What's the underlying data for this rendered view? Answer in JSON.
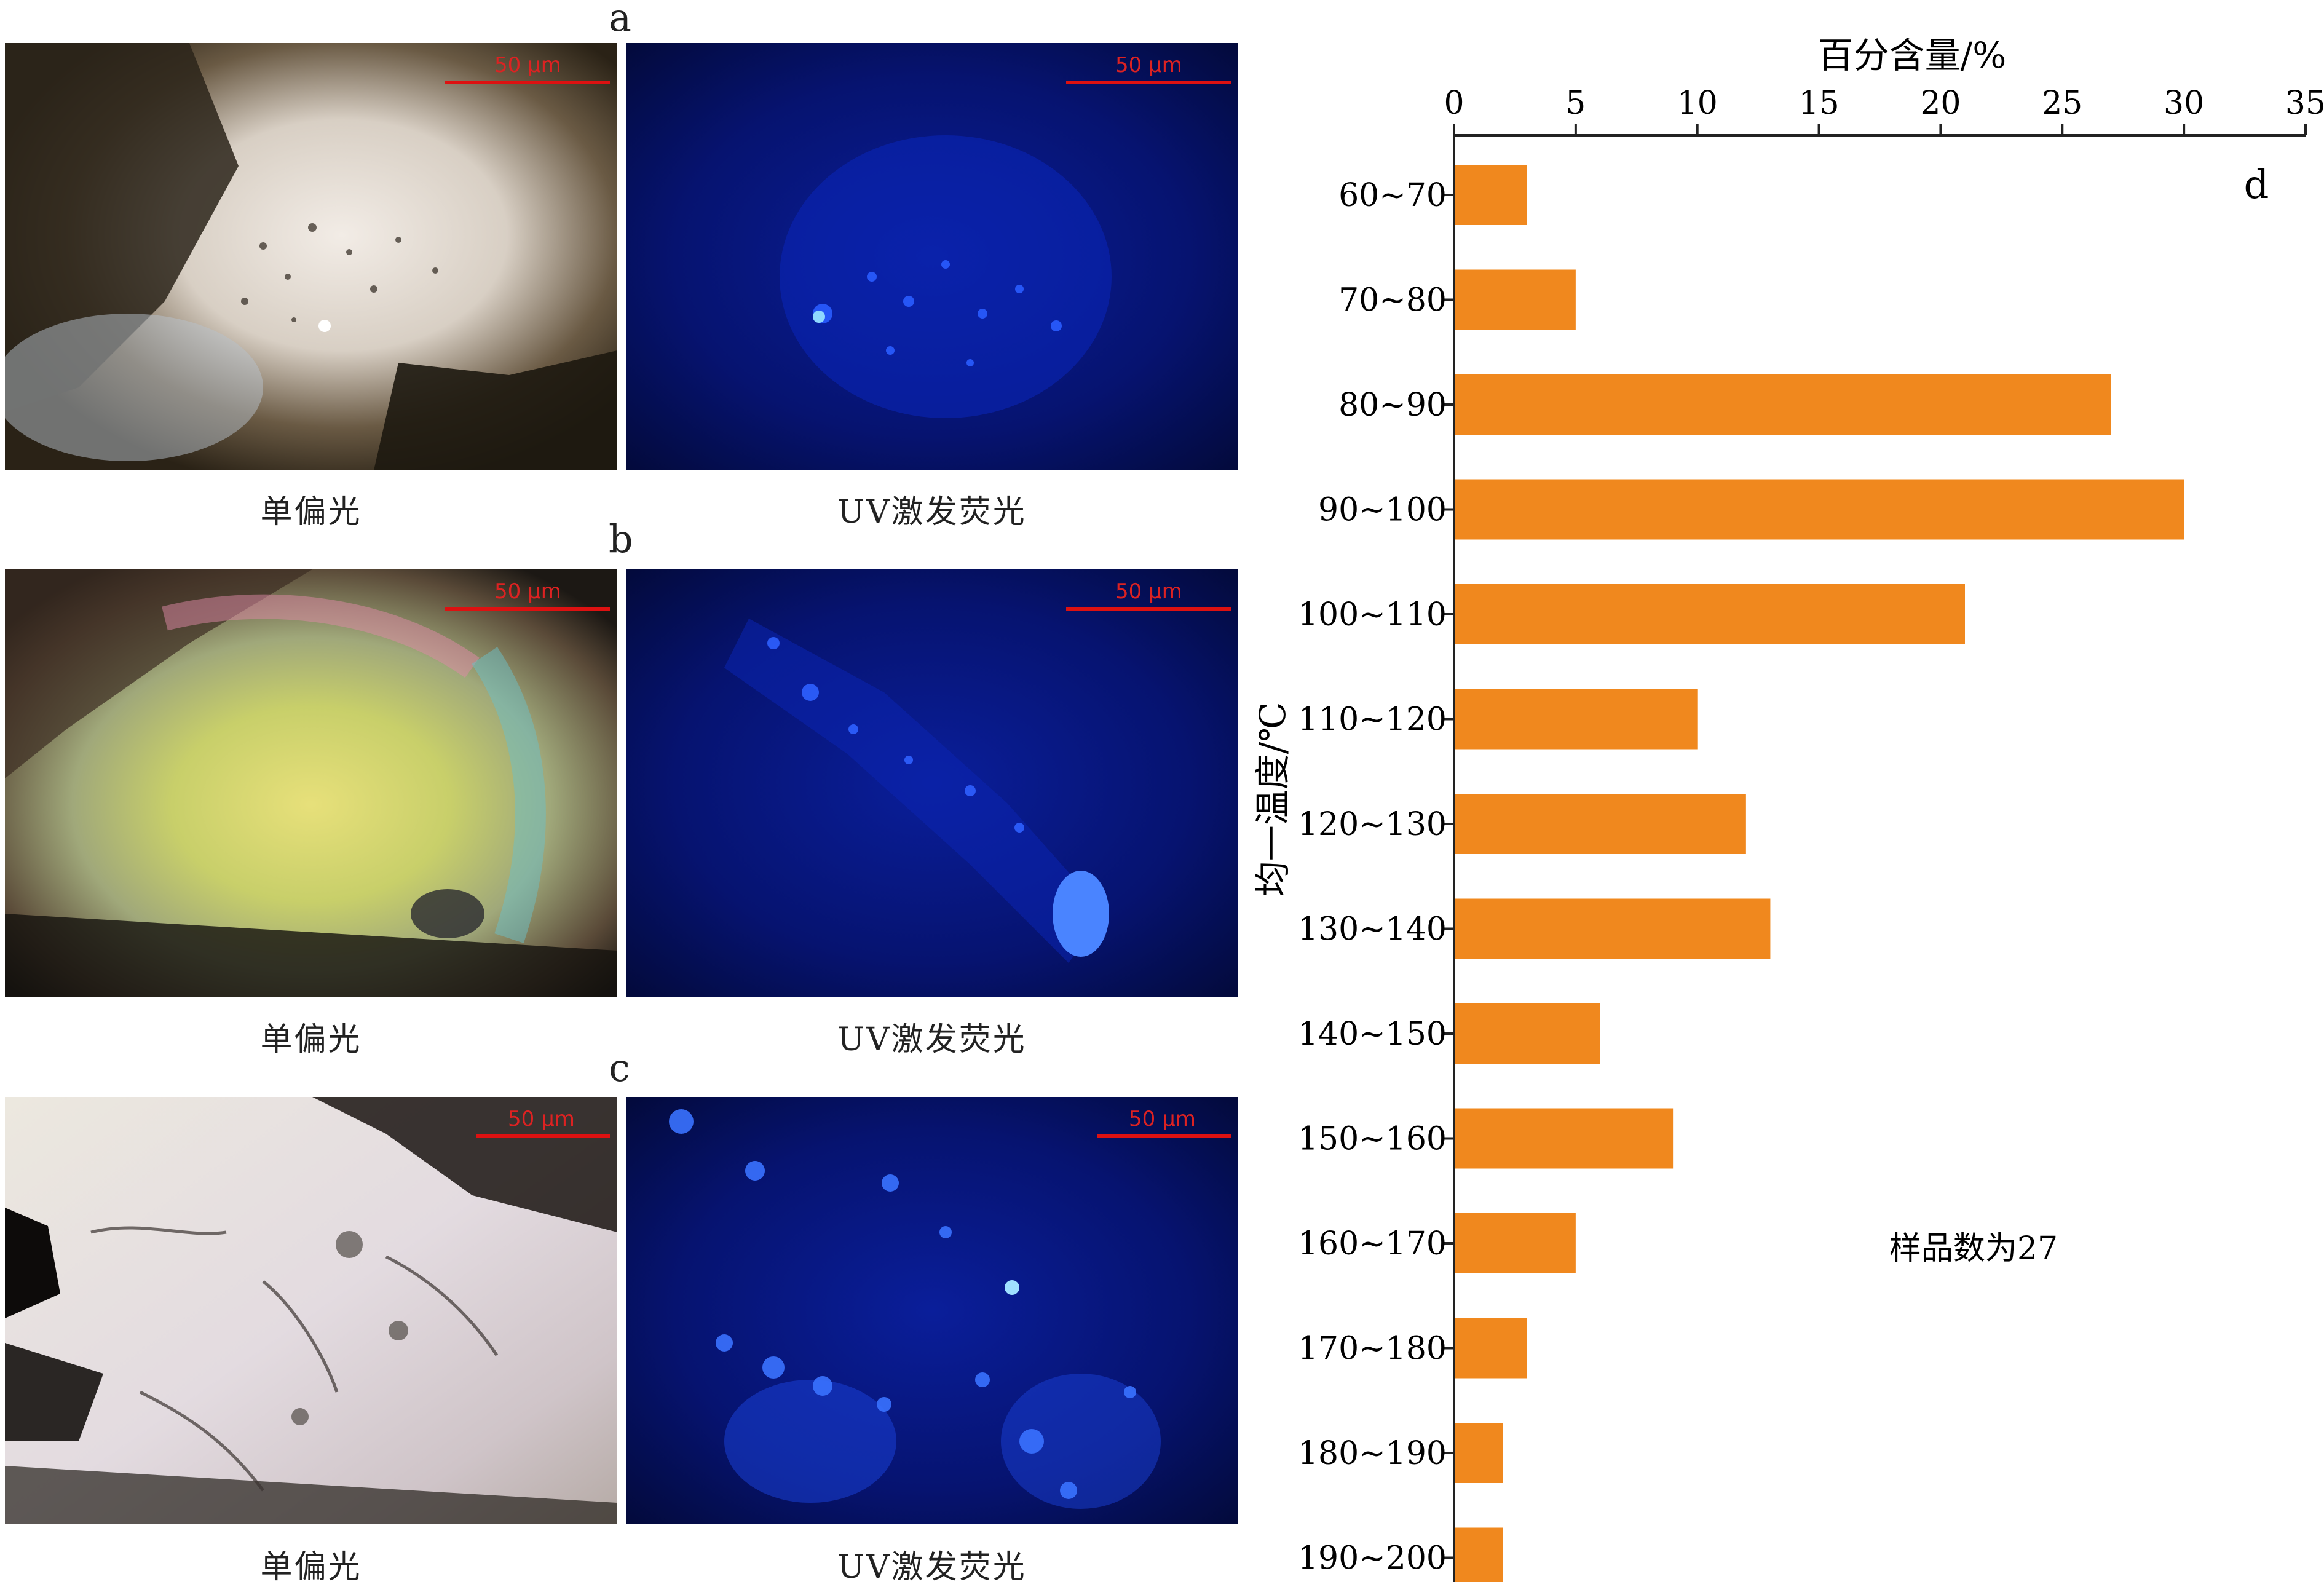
{
  "panels": {
    "a": {
      "letter": "a",
      "left_caption": "单偏光",
      "right_caption": "UV激发荧光",
      "scale_left": "50 μm",
      "scale_right": "50 μm"
    },
    "b": {
      "letter": "b",
      "left_caption": "单偏光",
      "right_caption": "UV激发荧光",
      "scale_left": "50 μm",
      "scale_right": "50 μm"
    },
    "c": {
      "letter": "c",
      "left_caption": "单偏光",
      "right_caption": "UV激发荧光",
      "scale_left": "50 μm",
      "scale_right": "50 μm"
    }
  },
  "chart_data": {
    "type": "bar",
    "orientation": "horizontal",
    "panel_letter": "d",
    "xlabel": "百分含量/%",
    "ylabel": "均一温度/℃",
    "xlim": [
      0,
      35
    ],
    "xticks": [
      "0",
      "5",
      "10",
      "15",
      "20",
      "25",
      "30",
      "35"
    ],
    "categories": [
      "60~70",
      "70~80",
      "80~90",
      "90~100",
      "100~110",
      "110~120",
      "120~130",
      "130~140",
      "140~150",
      "150~160",
      "160~170",
      "170~180",
      "180~190",
      "190~200"
    ],
    "values": [
      3,
      5,
      27,
      30,
      21,
      10,
      12,
      13,
      6,
      9,
      5,
      3,
      2,
      2
    ],
    "annotation": "样品数为27",
    "bar_color": "#f0881e",
    "grid": false
  }
}
